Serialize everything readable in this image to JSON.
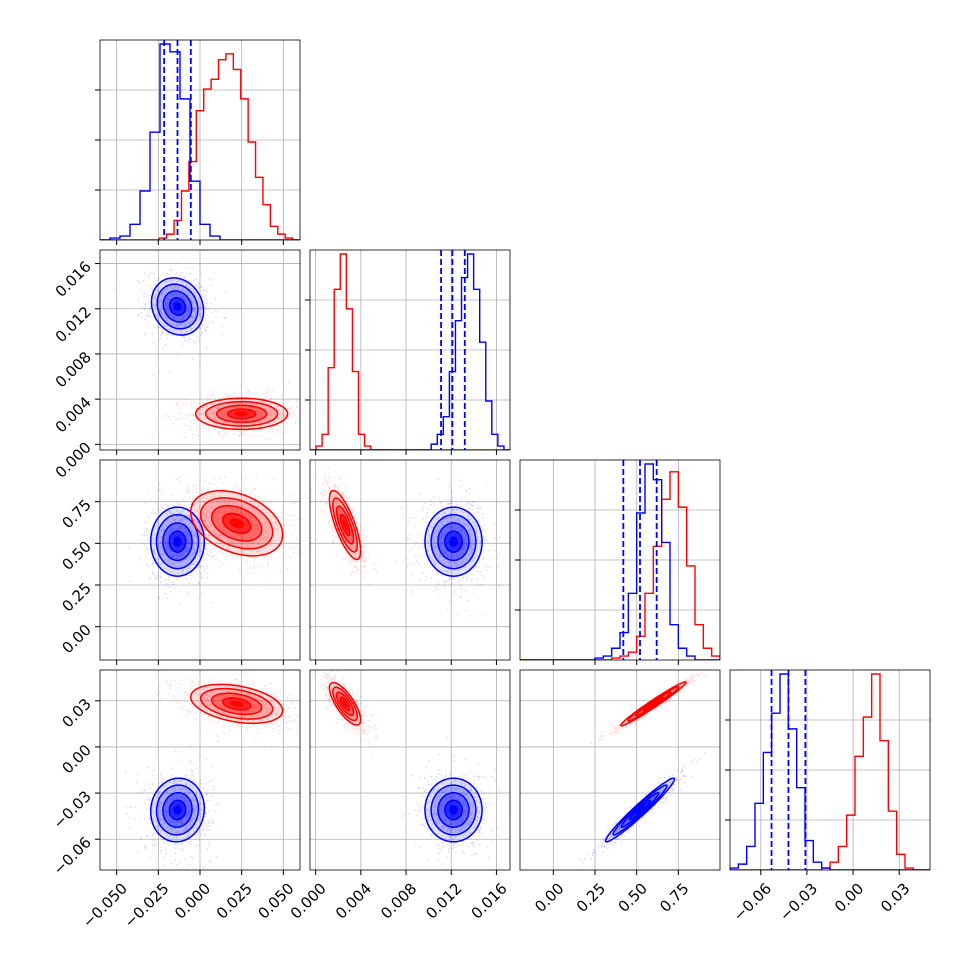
{
  "chart_data": {
    "type": "corner",
    "n_params": 4,
    "colors": {
      "series_a": "#0000ff",
      "series_b": "#ff0000",
      "grid": "#b0b0b0",
      "axis": "#000000"
    },
    "series_names": [
      "blue",
      "red"
    ],
    "params": [
      {
        "range": [
          -0.06,
          0.06
        ],
        "ticks": [
          -0.05,
          -0.025,
          0.0,
          0.025,
          0.05
        ],
        "tick_labels": [
          "−0.050",
          "−0.025",
          "0.000",
          "0.025",
          "0.050"
        ]
      },
      {
        "range": [
          -0.0005,
          0.0172
        ],
        "ticks": [
          0.0,
          0.004,
          0.008,
          0.012,
          0.016
        ],
        "tick_labels": [
          "0.000",
          "0.004",
          "0.008",
          "0.012",
          "0.016"
        ]
      },
      {
        "range": [
          -0.2,
          1.0
        ],
        "ticks": [
          0.0,
          0.25,
          0.5,
          0.75
        ],
        "tick_labels": [
          "0.00",
          "0.25",
          "0.50",
          "0.75"
        ]
      },
      {
        "range": [
          -0.08,
          0.05
        ],
        "ticks": [
          -0.06,
          -0.03,
          0.0,
          0.03
        ],
        "tick_labels": [
          "−0.06",
          "−0.03",
          "0.00",
          "0.03"
        ]
      }
    ],
    "quantiles_blue": [
      [
        -0.0215,
        -0.0135,
        -0.0055
      ],
      [
        0.0111,
        0.0121,
        0.0132
      ],
      [
        0.42,
        0.52,
        0.62
      ],
      [
        -0.053,
        -0.042,
        -0.031
      ]
    ],
    "hist_blue": [
      [
        0,
        1,
        2,
        8,
        25,
        55,
        100,
        96,
        72,
        30,
        8,
        2,
        0,
        0,
        0,
        0,
        0,
        0,
        0,
        0
      ],
      [
        0,
        0,
        0,
        0,
        0,
        0,
        0,
        0,
        0,
        0,
        0,
        0,
        0,
        0,
        0,
        0,
        0,
        0,
        0,
        0,
        3,
        8,
        17,
        40,
        66,
        88,
        100,
        82,
        55,
        25,
        8,
        2,
        0
      ],
      [
        0,
        0,
        0,
        0,
        0,
        0,
        0,
        0,
        0,
        1,
        2,
        6,
        14,
        34,
        75,
        100,
        92,
        60,
        18,
        6,
        2,
        0,
        0,
        0
      ],
      [
        1,
        3,
        12,
        34,
        60,
        80,
        100,
        72,
        42,
        15,
        4,
        1,
        0,
        0,
        0,
        0,
        0,
        0,
        0,
        0,
        0,
        0,
        0,
        0
      ]
    ],
    "hist_red": [
      [
        0,
        0,
        0,
        0,
        0,
        0,
        0,
        0,
        1,
        3,
        10,
        25,
        40,
        66,
        77,
        82,
        92,
        95,
        87,
        72,
        50,
        32,
        18,
        7,
        3,
        1,
        0
      ],
      [
        0,
        2,
        8,
        42,
        82,
        100,
        72,
        40,
        8,
        2,
        0,
        0,
        0,
        0,
        0,
        0,
        0,
        0,
        0,
        0,
        0,
        0,
        0,
        0,
        0,
        0,
        0,
        0,
        0,
        0,
        0,
        0,
        0
      ],
      [
        0,
        0,
        0,
        0,
        0,
        0,
        0,
        0,
        0,
        0,
        0,
        1,
        2,
        4,
        12,
        34,
        58,
        82,
        96,
        78,
        48,
        18,
        6,
        2
      ],
      [
        0,
        0,
        0,
        0,
        0,
        0,
        0,
        0,
        0,
        0,
        0,
        1,
        4,
        12,
        28,
        58,
        78,
        100,
        66,
        30,
        8,
        1,
        0,
        0
      ]
    ],
    "gauss_blue": [
      {
        "i": 0,
        "j": 1,
        "mx": -0.0135,
        "my": 0.0122,
        "sx": 0.0068,
        "sy": 0.0011,
        "rho": -0.15
      },
      {
        "i": 0,
        "j": 2,
        "mx": -0.0135,
        "my": 0.51,
        "sx": 0.007,
        "sy": 0.09,
        "rho": 0.0
      },
      {
        "i": 0,
        "j": 3,
        "mx": -0.0135,
        "my": -0.041,
        "sx": 0.007,
        "sy": 0.009,
        "rho": 0.05
      },
      {
        "i": 1,
        "j": 2,
        "mx": 0.0122,
        "my": 0.51,
        "sx": 0.0011,
        "sy": 0.09,
        "rho": 0.0
      },
      {
        "i": 1,
        "j": 3,
        "mx": 0.0122,
        "my": -0.041,
        "sx": 0.0011,
        "sy": 0.009,
        "rho": 0.0
      },
      {
        "i": 2,
        "j": 3,
        "mx": 0.52,
        "my": -0.041,
        "sx": 0.09,
        "sy": 0.009,
        "rho": 0.97
      }
    ],
    "gauss_red": [
      {
        "i": 0,
        "j": 1,
        "mx": 0.025,
        "my": 0.0027,
        "sx": 0.012,
        "sy": 0.0006,
        "rho": 0.0
      },
      {
        "i": 0,
        "j": 2,
        "mx": 0.022,
        "my": 0.62,
        "sx": 0.012,
        "sy": 0.085,
        "rho": -0.35
      },
      {
        "i": 0,
        "j": 3,
        "mx": 0.022,
        "my": 0.028,
        "sx": 0.012,
        "sy": 0.0055,
        "rho": -0.35
      },
      {
        "i": 1,
        "j": 2,
        "mx": 0.0026,
        "my": 0.61,
        "sx": 0.0006,
        "sy": 0.09,
        "rho": -0.75
      },
      {
        "i": 1,
        "j": 3,
        "mx": 0.0026,
        "my": 0.028,
        "sx": 0.0006,
        "sy": 0.006,
        "rho": -0.75
      },
      {
        "i": 2,
        "j": 3,
        "mx": 0.6,
        "my": 0.028,
        "sx": 0.085,
        "sy": 0.0062,
        "rho": 0.98
      }
    ]
  }
}
